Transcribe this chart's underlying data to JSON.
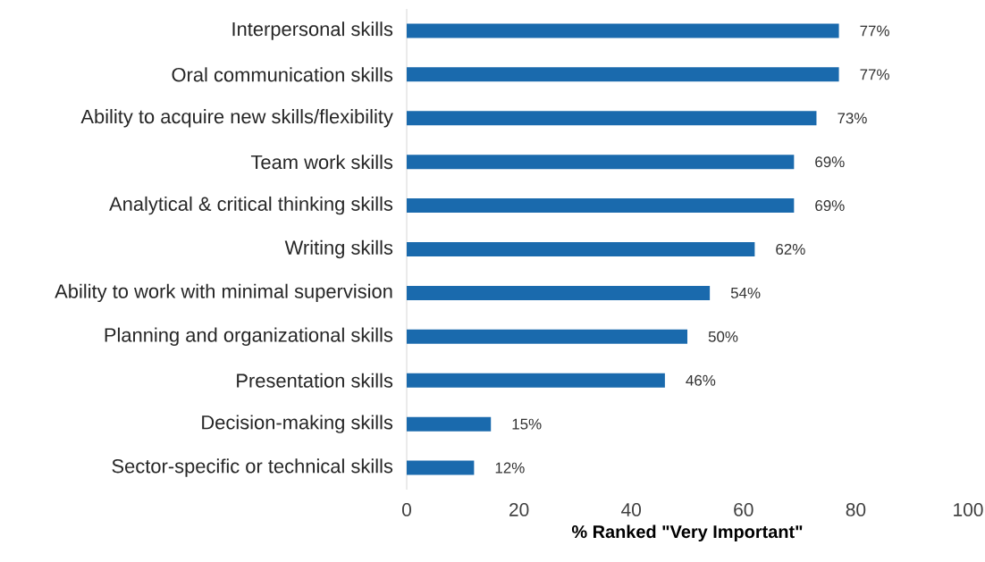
{
  "chart_data": {
    "type": "bar",
    "orientation": "horizontal",
    "xlabel": "% Ranked \"Very Important\"",
    "categories": [
      "Interpersonal skills",
      "Oral communication skills",
      "Ability to acquire new skills/flexibility",
      "Team work skills",
      "Analytical & critical thinking skills",
      "Writing skills",
      "Ability to work with minimal supervision",
      "Planning and organizational skills",
      "Presentation skills",
      "Decision-making skills",
      "Sector-specific or technical skills"
    ],
    "values": [
      77,
      77,
      73,
      69,
      69,
      62,
      54,
      50,
      46,
      15,
      12
    ],
    "value_labels": [
      "77%",
      "77%",
      "73%",
      "69%",
      "69%",
      "62%",
      "54%",
      "50%",
      "46%",
      "15%",
      "12%"
    ],
    "color": "#1a6aad",
    "xlim": [
      0,
      100
    ],
    "xticks": [
      0,
      20,
      40,
      60,
      80,
      100
    ]
  }
}
